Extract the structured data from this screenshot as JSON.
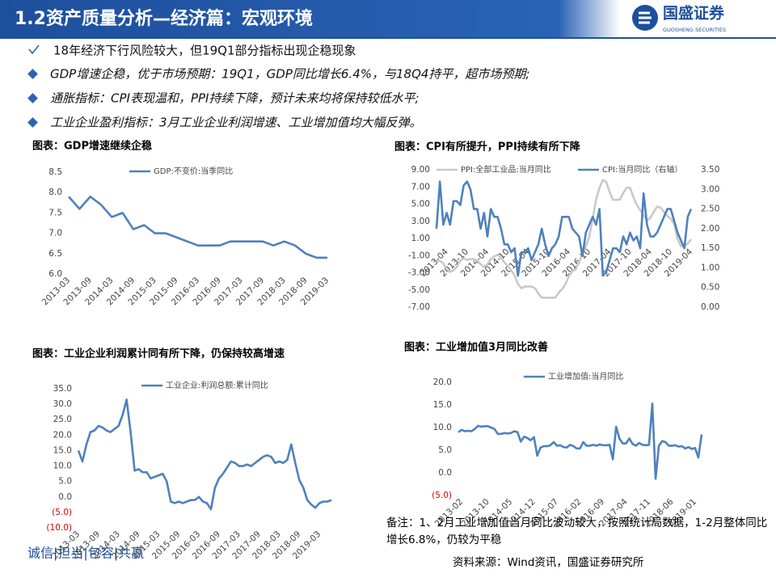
{
  "header": {
    "title": "1.2资产质量分析—经济篇：宏观环境",
    "logo_name": "国盛证券",
    "logo_sub": "GUOSHENG SECURITIES"
  },
  "bullets": [
    "18年经济下行风险较大，但19Q1部分指标出现企稳现象",
    "GDP增速企稳，优于市场预期：19Q1，GDP同比增长6.4%，与18Q4持平，超市场预期;",
    "通胀指标：CPI表现温和，PPI持续下降，预计未来均将保持较低水平;",
    "工业企业盈利指标：3月工业企业利润增速、工业增加值均大幅反弹。"
  ],
  "chart_data": [
    {
      "type": "line",
      "title": "图表：GDP增速继续企稳",
      "categories": [
        "2013-03",
        null,
        "2013-09",
        null,
        "2014-03",
        null,
        "2014-09",
        null,
        "2015-03",
        null,
        "2015-09",
        null,
        "2016-03",
        null,
        "2016-09",
        null,
        "2017-03",
        null,
        "2017-09",
        null,
        "2018-03",
        null,
        "2018-09",
        null,
        "2019-03"
      ],
      "series": [
        {
          "name": "GDP:不变价:当季同比",
          "color": "#4f81bd",
          "values": [
            7.9,
            7.6,
            7.9,
            7.7,
            7.4,
            7.5,
            7.1,
            7.2,
            7.0,
            7.0,
            6.9,
            6.8,
            6.7,
            6.7,
            6.7,
            6.8,
            6.8,
            6.8,
            6.8,
            6.7,
            6.8,
            6.7,
            6.5,
            6.4,
            6.4
          ]
        }
      ],
      "ylim": [
        6.0,
        8.5
      ],
      "yticks": [
        {
          "value": 8.5,
          "label": "8.5"
        },
        {
          "value": 8,
          "label": "8.0"
        },
        7.5,
        {
          "value": 7,
          "label": "7.0"
        },
        6.5,
        {
          "value": 6,
          "label": "6.0"
        }
      ]
    },
    {
      "type": "line",
      "title": "图表：CPI有所提升，PPI持续有所下降",
      "categories": [
        null,
        null,
        null,
        "2013-04",
        null,
        null,
        null,
        null,
        null,
        "2013-10",
        null,
        null,
        null,
        null,
        null,
        "2014-04",
        null,
        null,
        null,
        null,
        null,
        "2014-10",
        null,
        null,
        null,
        null,
        null,
        "2015-04",
        null,
        null,
        null,
        null,
        null,
        "2015-10",
        null,
        null,
        null,
        null,
        null,
        "2016-04",
        null,
        null,
        null,
        null,
        null,
        "2016-10",
        null,
        null,
        null,
        null,
        null,
        "2017-04",
        null,
        null,
        null,
        null,
        null,
        "2017-10",
        null,
        null,
        null,
        null,
        null,
        "2018-04",
        null,
        null,
        null,
        null,
        null,
        "2018-10",
        null,
        null,
        null,
        null,
        null,
        "2019-04"
      ],
      "series": [
        {
          "name": "PPI:全部工业品:当月同比",
          "color": "#c9c9c9",
          "values": [
            -1.6,
            -1.6,
            -1.9,
            -2.6,
            -2.9,
            -2.7,
            -2.3,
            -1.6,
            -1.3,
            -1.5,
            -1.4,
            -1.4,
            -1.6,
            -2.0,
            -2.3,
            -2.0,
            -1.4,
            -1.1,
            -0.9,
            -1.2,
            -1.8,
            -2.2,
            -2.7,
            -3.3,
            -4.3,
            -4.8,
            -4.6,
            -4.6,
            -4.6,
            -4.8,
            -5.4,
            -5.9,
            -5.9,
            -5.9,
            -5.9,
            -5.9,
            -5.3,
            -4.9,
            -4.3,
            -3.4,
            -2.8,
            -2.6,
            -1.7,
            -0.8,
            0.1,
            1.2,
            3.3,
            5.5,
            6.9,
            7.8,
            7.6,
            6.4,
            5.5,
            5.5,
            5.5,
            6.3,
            6.9,
            6.9,
            5.8,
            4.9,
            4.3,
            3.7,
            3.1,
            3.4,
            4.1,
            4.7,
            4.6,
            4.1,
            3.6,
            3.3,
            2.7,
            0.9,
            0.1,
            0.1,
            0.4,
            0.9
          ]
        },
        {
          "name": "CPI:当月同比（右轴）",
          "color": "#4f81bd",
          "axis": "y2",
          "values": [
            2.0,
            3.2,
            2.1,
            2.4,
            2.1,
            2.7,
            2.7,
            2.6,
            3.1,
            3.2,
            3.0,
            2.5,
            2.5,
            2.0,
            2.4,
            1.8,
            2.5,
            2.3,
            2.3,
            2.0,
            1.6,
            1.6,
            1.4,
            1.5,
            0.8,
            1.4,
            1.4,
            1.5,
            1.2,
            1.4,
            1.6,
            2.0,
            1.6,
            1.3,
            1.5,
            1.6,
            1.8,
            2.3,
            2.3,
            2.3,
            2.0,
            1.9,
            1.8,
            1.3,
            1.9,
            2.1,
            2.3,
            2.1,
            2.5,
            0.8,
            0.9,
            1.2,
            1.5,
            1.5,
            1.4,
            1.8,
            1.6,
            1.9,
            1.7,
            1.8,
            1.5,
            2.9,
            2.1,
            1.8,
            1.8,
            1.9,
            2.1,
            2.3,
            2.5,
            2.5,
            2.2,
            1.9,
            1.7,
            1.5,
            2.3,
            2.5
          ]
        }
      ],
      "ylim": [
        -7,
        9
      ],
      "yticks": [
        {
          "value": 9,
          "label": "9.00"
        },
        {
          "value": 7,
          "label": "7.00"
        },
        {
          "value": 5,
          "label": "5.00"
        },
        {
          "value": 3,
          "label": "3.00"
        },
        {
          "value": 1,
          "label": "1.00"
        },
        {
          "value": -1,
          "label": "-1.00"
        },
        {
          "value": -3,
          "label": "-3.00"
        },
        {
          "value": -5,
          "label": "-5.00"
        },
        {
          "value": -7,
          "label": "-7.00"
        }
      ],
      "y2lim": [
        0,
        3.5
      ],
      "y2ticks": [
        {
          "value": 3.5,
          "label": "3.50"
        },
        {
          "value": 3,
          "label": "3.00"
        },
        {
          "value": 2.5,
          "label": "2.50"
        },
        {
          "value": 2,
          "label": "2.00"
        },
        {
          "value": 1.5,
          "label": "1.50"
        },
        {
          "value": 1,
          "label": "1.00"
        },
        {
          "value": 0.5,
          "label": "0.50"
        },
        {
          "value": 0,
          "label": "0.00"
        }
      ]
    },
    {
      "type": "line",
      "title": "图表：工业企业利润累计同有所下降，仍保持较高增速",
      "categories": [
        "2013-03",
        null,
        null,
        null,
        null,
        "2013-09",
        null,
        null,
        null,
        null,
        "2014-03",
        null,
        null,
        null,
        null,
        "2014-09",
        null,
        null,
        null,
        null,
        "2015-03",
        null,
        null,
        null,
        null,
        "2015-09",
        null,
        null,
        null,
        null,
        "2016-03",
        null,
        null,
        null,
        null,
        "2016-09",
        null,
        null,
        null,
        null,
        "2017-03",
        null,
        null,
        null,
        null,
        "2017-09",
        null,
        null,
        null,
        null,
        "2018-03",
        null,
        null,
        null,
        null,
        "2018-09",
        null,
        null,
        null,
        null,
        "2019-03",
        null,
        null,
        null
      ],
      "series": [
        {
          "name": "工业企业:利润总额:累计同比",
          "color": "#4f81bd",
          "values": [
            15,
            11.5,
            17,
            21,
            21.5,
            23,
            22.5,
            21.5,
            21,
            22,
            23,
            26.5,
            31.5,
            21,
            8.5,
            9,
            8,
            8,
            6,
            6.5,
            7,
            7.5,
            5,
            -1.5,
            -2,
            -1.5,
            -2,
            -1.5,
            -1,
            -1,
            0,
            -1.5,
            -2,
            -4,
            3,
            6,
            7.5,
            9.5,
            11.5,
            11,
            10,
            10,
            10.5,
            10,
            11,
            12,
            13,
            13.5,
            13,
            11,
            11.5,
            11,
            12,
            17,
            11,
            5.5,
            3,
            -1,
            -2.5,
            -3.5,
            -2,
            -1.5,
            -1.5,
            -1
          ]
        }
      ],
      "ylim": [
        -10,
        35
      ],
      "negative_label_color": "#e00000",
      "yticks": [
        {
          "value": 35,
          "label": "35.0"
        },
        {
          "value": 30,
          "label": "30.0"
        },
        {
          "value": 25,
          "label": "25.0"
        },
        {
          "value": 20,
          "label": "20.0"
        },
        {
          "value": 15,
          "label": "15.0"
        },
        {
          "value": 10,
          "label": "10.0"
        },
        {
          "value": 5,
          "label": "5.0"
        },
        {
          "value": 0,
          "label": "0.0"
        },
        {
          "value": -5,
          "label": "(5.0)"
        },
        {
          "value": -10,
          "label": "(10.0)"
        }
      ]
    },
    {
      "type": "line",
      "title": "图表：工业增加值3月同比改善",
      "categories": [
        null,
        "2013-02",
        null,
        null,
        null,
        null,
        null,
        null,
        null,
        "2013-10",
        null,
        null,
        null,
        null,
        null,
        null,
        "2014-05",
        null,
        null,
        null,
        null,
        null,
        null,
        "2014-12",
        null,
        null,
        null,
        null,
        null,
        null,
        "2015-07",
        null,
        null,
        null,
        null,
        null,
        null,
        "2016-02",
        null,
        null,
        null,
        null,
        null,
        null,
        "2016-09",
        null,
        null,
        null,
        null,
        null,
        null,
        "2017-04",
        null,
        null,
        null,
        null,
        null,
        null,
        "2017-11",
        null,
        null,
        null,
        null,
        null,
        null,
        "2018-06",
        null,
        null,
        null,
        null,
        null,
        null,
        "2019-01",
        null,
        null
      ],
      "series": [
        {
          "name": "工业增加值:当月同比",
          "color": "#4f81bd",
          "values": [
            9.0,
            9.5,
            9.2,
            9.3,
            9.2,
            9.7,
            10.4,
            10.2,
            10.3,
            10.3,
            10.0,
            9.7,
            8.6,
            8.6,
            8.8,
            8.7,
            8.8,
            9.2,
            9.0,
            6.9,
            8.0,
            7.7,
            7.2,
            7.9,
            3.8,
            5.6,
            5.9,
            5.9,
            6.1,
            6.8,
            6.0,
            6.1,
            5.7,
            5.6,
            6.2,
            5.9,
            5.4,
            5.4,
            6.8,
            6.0,
            6.0,
            6.2,
            6.0,
            6.3,
            6.1,
            6.1,
            6.2,
            3.0,
            10.2,
            7.6,
            6.5,
            6.5,
            7.6,
            6.4,
            6.0,
            6.6,
            6.2,
            6.1,
            6.2,
            15.3,
            -1.3,
            6.0,
            7.0,
            6.8,
            6.0,
            6.0,
            6.1,
            5.8,
            5.9,
            5.4,
            5.7,
            5.3,
            5.5,
            3.4,
            8.5
          ]
        }
      ],
      "ylim": [
        -5,
        20
      ],
      "negative_label_color": "#e00000",
      "yticks": [
        {
          "value": 20,
          "label": "20.0"
        },
        {
          "value": 15,
          "label": "15.0"
        },
        {
          "value": 10,
          "label": "10.0"
        },
        {
          "value": 5,
          "label": "5.0"
        },
        {
          "value": 0,
          "label": "0.0"
        },
        {
          "value": -5,
          "label": "(5.0)"
        }
      ]
    }
  ],
  "note": "备注：1、2月工业增加值当月同比波动较大，按照统计局数据，1-2月整体同比增长6.8%，仍较为平稳",
  "source": "资料来源：Wind资讯，国盛证券研究所",
  "slogan": "诚信|担当|包容|共赢"
}
